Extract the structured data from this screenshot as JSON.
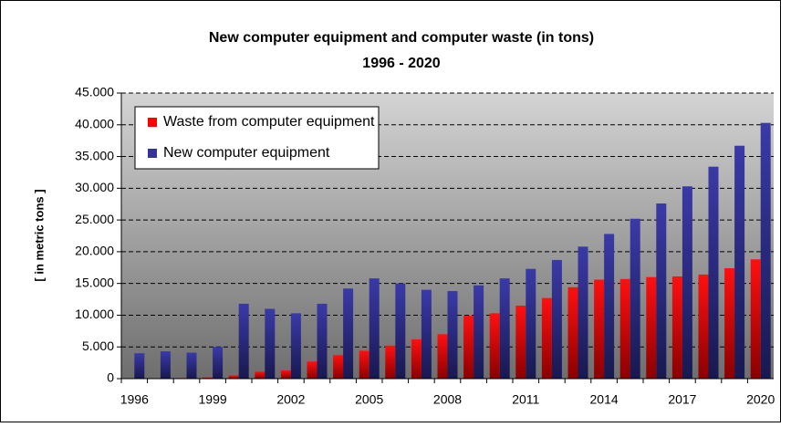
{
  "chart_data": {
    "type": "bar",
    "title": "New computer equipment and computer waste (in tons)",
    "subtitle": "1996 - 2020",
    "y_label": "[ in metric tons ]",
    "categories": [
      "1996",
      null,
      null,
      "1999",
      null,
      null,
      "2002",
      null,
      null,
      "2005",
      null,
      null,
      "2008",
      null,
      null,
      "2011",
      null,
      null,
      "2014",
      null,
      null,
      "2017",
      null,
      null,
      "2020"
    ],
    "series": [
      {
        "name": "Waste from computer equipment",
        "color": "#ff0000",
        "values": [
          0,
          0,
          100,
          200,
          500,
          1100,
          1300,
          2700,
          3700,
          4400,
          5200,
          6200,
          7000,
          9900,
          10300,
          11500,
          12700,
          14400,
          15600,
          15700,
          16000,
          16100,
          16400,
          17400,
          18800
        ]
      },
      {
        "name": "New computer equipment",
        "color": "#333399",
        "values": [
          4000,
          4300,
          4100,
          5000,
          11800,
          11000,
          10300,
          11800,
          14200,
          15800,
          15000,
          14000,
          13800,
          14700,
          15800,
          17300,
          18700,
          20800,
          22800,
          25200,
          27600,
          30300,
          33400,
          36700,
          40300
        ]
      }
    ],
    "ylim": [
      0,
      45000
    ],
    "yticks": [
      0,
      {
        "value": 5000,
        "label": "5.000"
      },
      {
        "value": 10000,
        "label": "10.000"
      },
      {
        "value": 15000,
        "label": "15.000"
      },
      {
        "value": 20000,
        "label": "20.000"
      },
      {
        "value": 25000,
        "label": "25.000"
      },
      {
        "value": 30000,
        "label": "30.000"
      },
      {
        "value": 35000,
        "label": "35.000"
      },
      {
        "value": 40000,
        "label": "40.000"
      },
      {
        "value": 45000,
        "label": "45.000"
      }
    ],
    "grid": true,
    "legend": "upper left"
  }
}
